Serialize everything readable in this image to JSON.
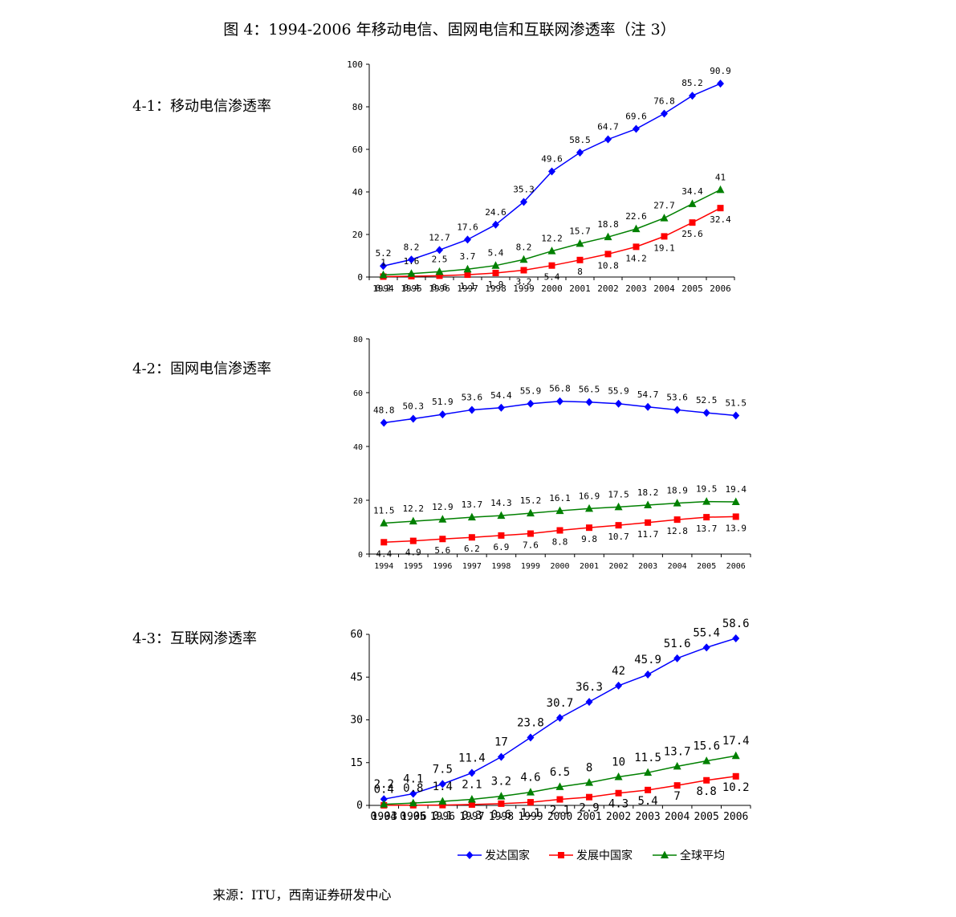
{
  "figure_title": "图 4：1994-2006 年移动电信、固网电信和互联网渗透率（注 3）",
  "source": "来源：ITU，西南证券研发中心",
  "colors": {
    "developed": "#0000ff",
    "developing": "#ff0000",
    "global": "#008000"
  },
  "chart_data": [
    {
      "type": "line",
      "label": "4-1：移动电信渗透率",
      "categories": [
        "1994",
        "1995",
        "1996",
        "1997",
        "1998",
        "1999",
        "2000",
        "2001",
        "2002",
        "2003",
        "2004",
        "2005",
        "2006"
      ],
      "ylim": [
        0,
        100
      ],
      "yticks": [
        0,
        20,
        40,
        60,
        80,
        100
      ],
      "series": [
        {
          "key": "developed",
          "marker": "diamond",
          "values": [
            5.2,
            8.2,
            12.7,
            17.6,
            24.6,
            35.3,
            49.6,
            58.5,
            64.7,
            69.6,
            76.8,
            85.2,
            90.9
          ]
        },
        {
          "key": "developing",
          "marker": "square",
          "values": [
            0.2,
            0.4,
            0.6,
            1.1,
            1.9,
            3.2,
            5.4,
            8,
            10.8,
            14.2,
            19.1,
            25.6,
            32.4
          ]
        },
        {
          "key": "global",
          "marker": "triangle",
          "values": [
            1,
            1.6,
            2.5,
            3.7,
            5.4,
            8.2,
            12.2,
            15.7,
            18.8,
            22.6,
            27.7,
            34.4,
            41
          ]
        }
      ]
    },
    {
      "type": "line",
      "label": "4-2：固网电信渗透率",
      "categories": [
        "1994",
        "1995",
        "1996",
        "1997",
        "1998",
        "1999",
        "2000",
        "2001",
        "2002",
        "2003",
        "2004",
        "2005",
        "2006"
      ],
      "ylim": [
        0,
        80
      ],
      "yticks": [
        0,
        20,
        40,
        60,
        80
      ],
      "series": [
        {
          "key": "developed",
          "marker": "diamond",
          "values": [
            48.8,
            50.3,
            51.9,
            53.6,
            54.4,
            55.9,
            56.8,
            56.5,
            55.9,
            54.7,
            53.6,
            52.5,
            51.5
          ]
        },
        {
          "key": "developing",
          "marker": "square",
          "values": [
            4.4,
            4.9,
            5.6,
            6.2,
            6.9,
            7.6,
            8.8,
            9.8,
            10.7,
            11.7,
            12.8,
            13.7,
            13.9
          ]
        },
        {
          "key": "global",
          "marker": "triangle",
          "values": [
            11.5,
            12.2,
            12.9,
            13.7,
            14.3,
            15.2,
            16.1,
            16.9,
            17.5,
            18.2,
            18.9,
            19.5,
            19.4
          ]
        }
      ]
    },
    {
      "type": "line",
      "label": "4-3：互联网渗透率",
      "categories": [
        "1994",
        "1995",
        "1996",
        "1997",
        "1998",
        "1999",
        "2000",
        "2001",
        "2002",
        "2003",
        "2004",
        "2005",
        "2006"
      ],
      "ylim": [
        0,
        60
      ],
      "yticks": [
        0,
        15,
        30,
        45,
        60
      ],
      "legend_position": "bottom",
      "series": [
        {
          "key": "developed",
          "name": "发达国家",
          "marker": "diamond",
          "values": [
            2.2,
            4.1,
            7.5,
            11.4,
            17,
            23.8,
            30.7,
            36.3,
            42,
            45.9,
            51.6,
            55.4,
            58.6
          ]
        },
        {
          "key": "developing",
          "name": "发展中国家",
          "marker": "square",
          "values": [
            0.03,
            0.06,
            0.1,
            0.3,
            0.6,
            1.1,
            2.1,
            2.9,
            4.3,
            5.4,
            7,
            8.8,
            10.2
          ]
        },
        {
          "key": "global",
          "name": "全球平均",
          "marker": "triangle",
          "values": [
            0.4,
            0.8,
            1.4,
            2.1,
            3.2,
            4.6,
            6.5,
            8,
            10,
            11.5,
            13.7,
            15.6,
            17.4
          ]
        }
      ]
    }
  ]
}
